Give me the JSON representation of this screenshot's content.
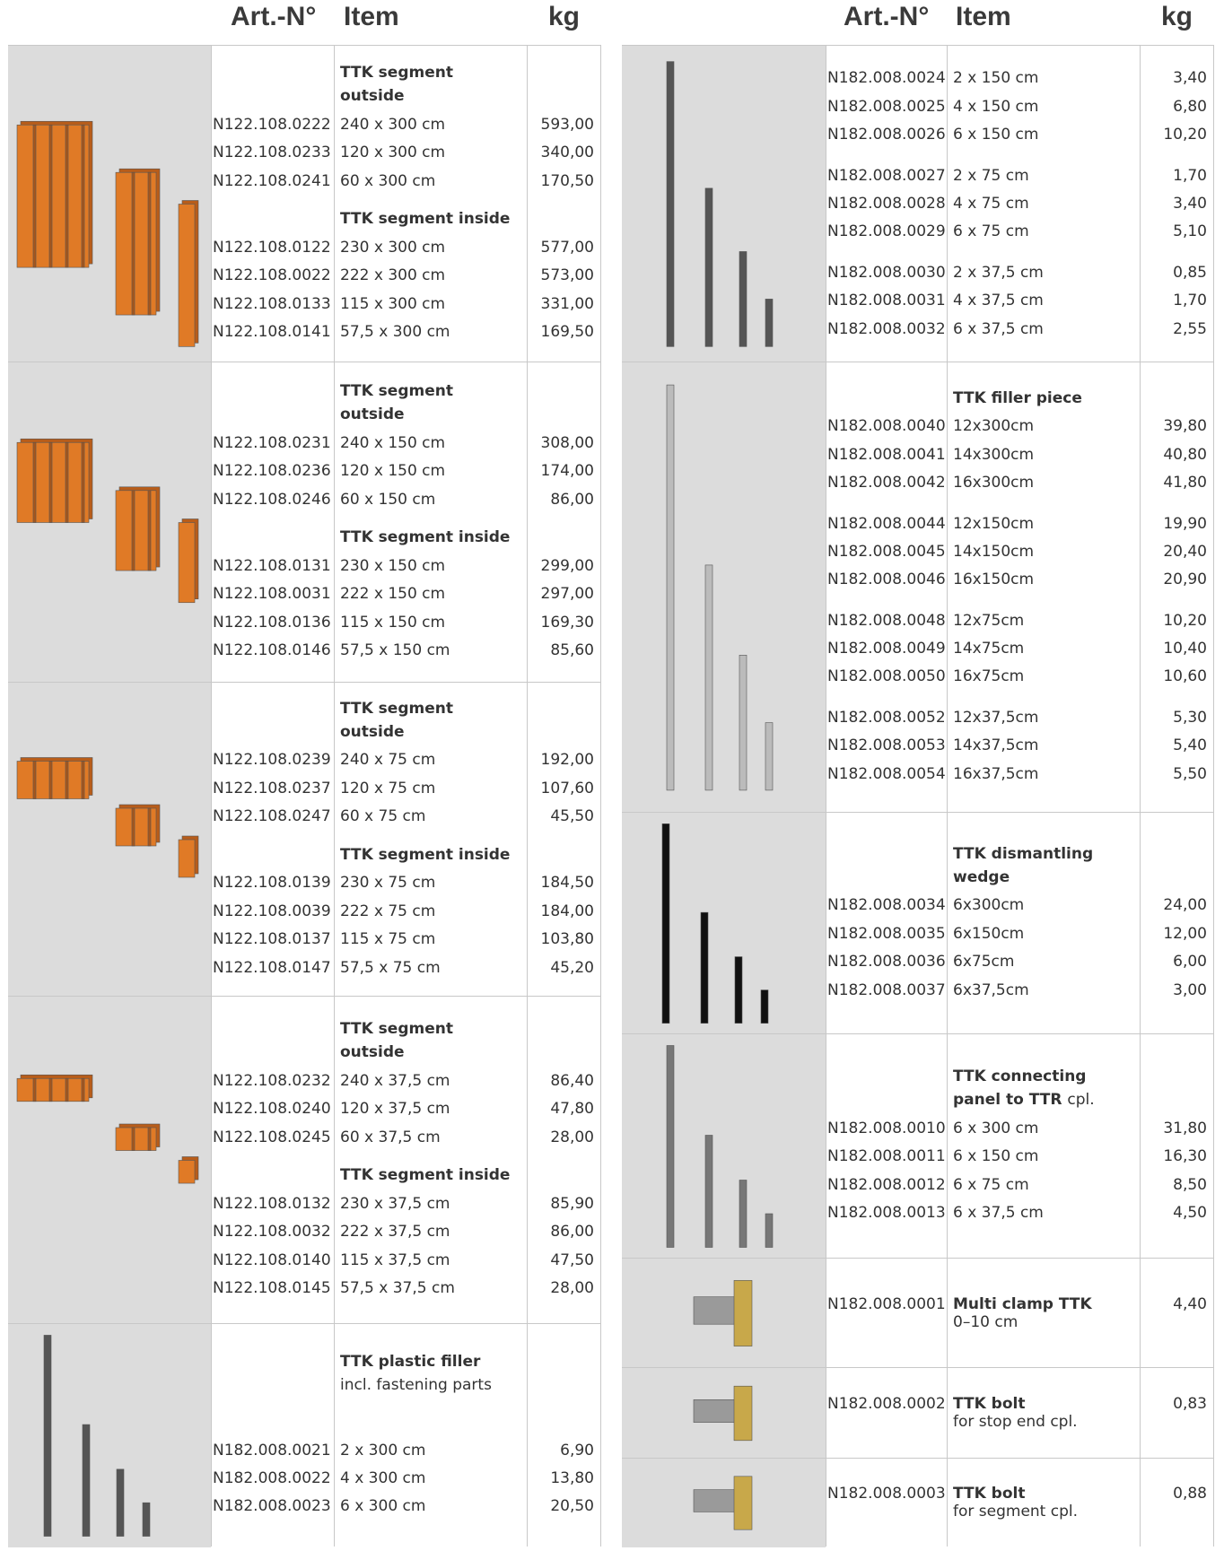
{
  "left_header": {
    "art": "Art.-N°",
    "item": "Item",
    "kg": "kg"
  },
  "right_header": {
    "art": "Art.-N°",
    "item": "Item",
    "kg": "kg"
  },
  "left_sections": [
    {
      "groups": [
        {
          "heading": "TTK segment outside",
          "rows": [
            [
              "N122.108.0222",
              "240 x 300 cm",
              "593,00"
            ],
            [
              "N122.108.0233",
              "120 x 300 cm",
              "340,00"
            ],
            [
              "N122.108.0241",
              "60 x 300 cm",
              "170,50"
            ]
          ]
        },
        {
          "heading": "TTK segment inside",
          "rows": [
            [
              "N122.108.0122",
              "230 x 300 cm",
              "577,00"
            ],
            [
              "N122.108.0022",
              "222 x 300 cm",
              "573,00"
            ],
            [
              "N122.108.0133",
              "115 x 300 cm",
              "331,00"
            ],
            [
              "N122.108.0141",
              "57,5 x 300 cm",
              "169,50"
            ]
          ]
        }
      ]
    },
    {
      "groups": [
        {
          "heading": "TTK segment outside",
          "rows": [
            [
              "N122.108.0231",
              "240 x 150 cm",
              "308,00"
            ],
            [
              "N122.108.0236",
              "120 x 150 cm",
              "174,00"
            ],
            [
              "N122.108.0246",
              "60 x 150 cm",
              "86,00"
            ]
          ]
        },
        {
          "heading": "TTK segment inside",
          "rows": [
            [
              "N122.108.0131",
              "230 x 150 cm",
              "299,00"
            ],
            [
              "N122.108.0031",
              "222 x 150 cm",
              "297,00"
            ],
            [
              "N122.108.0136",
              "115 x 150 cm",
              "169,30"
            ],
            [
              "N122.108.0146",
              "57,5 x 150 cm",
              "85,60"
            ]
          ]
        }
      ]
    },
    {
      "groups": [
        {
          "heading": "TTK segment outside",
          "rows": [
            [
              "N122.108.0239",
              "240 x 75 cm",
              "192,00"
            ],
            [
              "N122.108.0237",
              "120 x 75 cm",
              "107,60"
            ],
            [
              "N122.108.0247",
              "60 x 75 cm",
              "45,50"
            ]
          ]
        },
        {
          "heading": "TTK segment inside",
          "rows": [
            [
              "N122.108.0139",
              "230 x 75 cm",
              "184,50"
            ],
            [
              "N122.108.0039",
              "222 x 75 cm",
              "184,00"
            ],
            [
              "N122.108.0137",
              "115 x 75 cm",
              "103,80"
            ],
            [
              "N122.108.0147",
              "57,5 x 75 cm",
              "45,20"
            ]
          ]
        }
      ]
    },
    {
      "groups": [
        {
          "heading": "TTK segment outside",
          "rows": [
            [
              "N122.108.0232",
              "240 x 37,5 cm",
              "86,40"
            ],
            [
              "N122.108.0240",
              "120 x 37,5 cm",
              "47,80"
            ],
            [
              "N122.108.0245",
              "60 x 37,5 cm",
              "28,00"
            ]
          ]
        },
        {
          "heading": "TTK segment inside",
          "rows": [
            [
              "N122.108.0132",
              "230 x 37,5 cm",
              "85,90"
            ],
            [
              "N122.108.0032",
              "222 x 37,5 cm",
              "86,00"
            ],
            [
              "N122.108.0140",
              "115 x 37,5 cm",
              "47,50"
            ],
            [
              "N122.108.0145",
              "57,5 x 37,5 cm",
              "28,00"
            ]
          ]
        }
      ]
    },
    {
      "groups": [
        {
          "heading": "TTK plastic filler",
          "subheading": "incl. fastening parts",
          "rows": [
            [
              "N182.008.0021",
              "2 x 300 cm",
              "6,90"
            ],
            [
              "N182.008.0022",
              "4 x 300 cm",
              "13,80"
            ],
            [
              "N182.008.0023",
              "6 x 300 cm",
              "20,50"
            ]
          ]
        }
      ]
    }
  ],
  "right_sections": [
    {
      "groups": [
        {
          "rows": [
            [
              "N182.008.0024",
              "2 x 150 cm",
              "3,40"
            ],
            [
              "N182.008.0025",
              "4 x 150 cm",
              "6,80"
            ],
            [
              "N182.008.0026",
              "6 x 150 cm",
              "10,20"
            ]
          ]
        },
        {
          "rows": [
            [
              "N182.008.0027",
              "2 x 75 cm",
              "1,70"
            ],
            [
              "N182.008.0028",
              "4 x 75 cm",
              "3,40"
            ],
            [
              "N182.008.0029",
              "6 x 75 cm",
              "5,10"
            ]
          ]
        },
        {
          "rows": [
            [
              "N182.008.0030",
              "2 x 37,5 cm",
              "0,85"
            ],
            [
              "N182.008.0031",
              "4 x 37,5 cm",
              "1,70"
            ],
            [
              "N182.008.0032",
              "6 x 37,5 cm",
              "2,55"
            ]
          ]
        }
      ]
    },
    {
      "groups": [
        {
          "heading": "TTK filler piece",
          "rows": [
            [
              "N182.008.0040",
              "12x300cm",
              "39,80"
            ],
            [
              "N182.008.0041",
              "14x300cm",
              "40,80"
            ],
            [
              "N182.008.0042",
              "16x300cm",
              "41,80"
            ]
          ]
        },
        {
          "rows": [
            [
              "N182.008.0044",
              "12x150cm",
              "19,90"
            ],
            [
              "N182.008.0045",
              "14x150cm",
              "20,40"
            ],
            [
              "N182.008.0046",
              "16x150cm",
              "20,90"
            ]
          ]
        },
        {
          "rows": [
            [
              "N182.008.0048",
              "12x75cm",
              "10,20"
            ],
            [
              "N182.008.0049",
              "14x75cm",
              "10,40"
            ],
            [
              "N182.008.0050",
              "16x75cm",
              "10,60"
            ]
          ]
        },
        {
          "rows": [
            [
              "N182.008.0052",
              "12x37,5cm",
              "5,30"
            ],
            [
              "N182.008.0053",
              "14x37,5cm",
              "5,40"
            ],
            [
              "N182.008.0054",
              "16x37,5cm",
              "5,50"
            ]
          ]
        }
      ]
    },
    {
      "groups": [
        {
          "heading": "TTK dismantling wedge",
          "rows": [
            [
              "N182.008.0034",
              "6x300cm",
              "24,00"
            ],
            [
              "N182.008.0035",
              "6x150cm",
              "12,00"
            ],
            [
              "N182.008.0036",
              "6x75cm",
              "6,00"
            ],
            [
              "N182.008.0037",
              "6x37,5cm",
              "3,00"
            ]
          ]
        }
      ]
    },
    {
      "groups": [
        {
          "heading": "TTK connecting panel to TTR",
          "heading_note": "cpl.",
          "rows": [
            [
              "N182.008.0010",
              "6 x 300 cm",
              "31,80"
            ],
            [
              "N182.008.0011",
              "6 x 150 cm",
              "16,30"
            ],
            [
              "N182.008.0012",
              "6 x 75 cm",
              "8,50"
            ],
            [
              "N182.008.0013",
              "6 x 37,5 cm",
              "4,50"
            ]
          ]
        }
      ]
    },
    {
      "featured": {
        "art": "N182.008.0001",
        "item": "Multi clamp TTK",
        "note": "0–10 cm",
        "kg": "4,40"
      }
    },
    {
      "featured": {
        "art": "N182.008.0002",
        "item": "TTK bolt",
        "note": "for stop end cpl.",
        "kg": "0,83"
      }
    },
    {
      "featured": {
        "art": "N182.008.0003",
        "item": "TTK bolt",
        "note": "for segment cpl.",
        "kg": "0,88"
      }
    }
  ]
}
